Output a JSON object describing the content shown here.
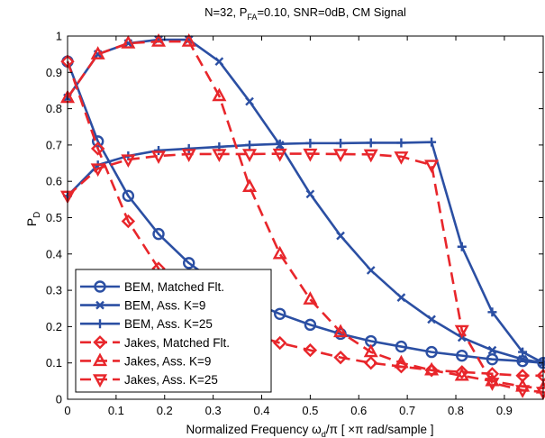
{
  "chart_data": {
    "type": "line",
    "title": {
      "main": "N=32, P",
      "sub": "FA",
      "rest": "=0.10, SNR=0dB, CM Signal"
    },
    "xlabel": {
      "main": "Normalized Frequency ω",
      "sub": "d",
      "rest": "/π  [ ×π rad/sample ]"
    },
    "ylabel": {
      "main": "P",
      "sub": "D"
    },
    "xlim": [
      0,
      0.98
    ],
    "ylim": [
      0,
      1
    ],
    "xticks": [
      "0",
      "0.1",
      "0.2",
      "0.3",
      "0.4",
      "0.5",
      "0.6",
      "0.7",
      "0.8",
      "0.9"
    ],
    "yticks": [
      "0",
      "0.1",
      "0.2",
      "0.3",
      "0.4",
      "0.5",
      "0.6",
      "0.7",
      "0.8",
      "0.9",
      "1"
    ],
    "grid": false,
    "legend_position": "bottom-left",
    "series": [
      {
        "name": "BEM, Matched Flt.",
        "color": "#2b4fa3",
        "dash": "solid",
        "marker": "circle",
        "x": [
          0,
          0.0625,
          0.125,
          0.1875,
          0.25,
          0.3125,
          0.375,
          0.4375,
          0.5,
          0.5625,
          0.625,
          0.6875,
          0.75,
          0.8125,
          0.875,
          0.9375,
          0.98
        ],
        "y": [
          0.93,
          0.71,
          0.56,
          0.455,
          0.375,
          0.315,
          0.27,
          0.235,
          0.205,
          0.18,
          0.16,
          0.145,
          0.13,
          0.12,
          0.11,
          0.105,
          0.1
        ]
      },
      {
        "name": "BEM, Ass. K=9",
        "color": "#2b4fa3",
        "dash": "solid",
        "marker": "x",
        "x": [
          0,
          0.0625,
          0.125,
          0.1875,
          0.25,
          0.3125,
          0.375,
          0.4375,
          0.5,
          0.5625,
          0.625,
          0.6875,
          0.75,
          0.8125,
          0.875,
          0.9375,
          0.98
        ],
        "y": [
          0.83,
          0.95,
          0.98,
          0.99,
          0.99,
          0.93,
          0.82,
          0.7,
          0.565,
          0.45,
          0.355,
          0.28,
          0.22,
          0.17,
          0.135,
          0.11,
          0.1
        ]
      },
      {
        "name": "BEM, Ass. K=25",
        "color": "#2b4fa3",
        "dash": "solid",
        "marker": "plus",
        "x": [
          0,
          0.0625,
          0.125,
          0.1875,
          0.25,
          0.3125,
          0.375,
          0.4375,
          0.5,
          0.5625,
          0.625,
          0.6875,
          0.75,
          0.8125,
          0.875,
          0.9375,
          0.98
        ],
        "y": [
          0.56,
          0.645,
          0.67,
          0.685,
          0.69,
          0.695,
          0.7,
          0.703,
          0.705,
          0.705,
          0.706,
          0.706,
          0.708,
          0.42,
          0.24,
          0.13,
          0.1
        ]
      },
      {
        "name": "Jakes, Matched Flt.",
        "color": "#e8262b",
        "dash": "dash",
        "marker": "diamond",
        "x": [
          0,
          0.0625,
          0.125,
          0.1875,
          0.25,
          0.3125,
          0.375,
          0.4375,
          0.5,
          0.5625,
          0.625,
          0.6875,
          0.75,
          0.8125,
          0.875,
          0.9375,
          0.98
        ],
        "y": [
          0.93,
          0.69,
          0.49,
          0.36,
          0.275,
          0.215,
          0.18,
          0.155,
          0.135,
          0.115,
          0.1,
          0.09,
          0.08,
          0.075,
          0.07,
          0.065,
          0.065
        ]
      },
      {
        "name": "Jakes, Ass. K=9",
        "color": "#e8262b",
        "dash": "dash",
        "marker": "triangle-up",
        "x": [
          0,
          0.0625,
          0.125,
          0.1875,
          0.25,
          0.3125,
          0.375,
          0.4375,
          0.5,
          0.5625,
          0.625,
          0.6875,
          0.75,
          0.8125,
          0.875,
          0.9375,
          0.98
        ],
        "y": [
          0.83,
          0.95,
          0.98,
          0.985,
          0.985,
          0.835,
          0.585,
          0.4,
          0.275,
          0.185,
          0.13,
          0.1,
          0.08,
          0.065,
          0.05,
          0.035,
          0.03
        ]
      },
      {
        "name": "Jakes, Ass. K=25",
        "color": "#e8262b",
        "dash": "dash",
        "marker": "triangle-down",
        "x": [
          0,
          0.0625,
          0.125,
          0.1875,
          0.25,
          0.3125,
          0.375,
          0.4375,
          0.5,
          0.5625,
          0.625,
          0.6875,
          0.75,
          0.8125,
          0.875,
          0.9375,
          0.98
        ],
        "y": [
          0.56,
          0.635,
          0.66,
          0.67,
          0.675,
          0.675,
          0.675,
          0.676,
          0.676,
          0.675,
          0.674,
          0.668,
          0.645,
          0.19,
          0.045,
          0.025,
          0.02
        ]
      }
    ]
  }
}
